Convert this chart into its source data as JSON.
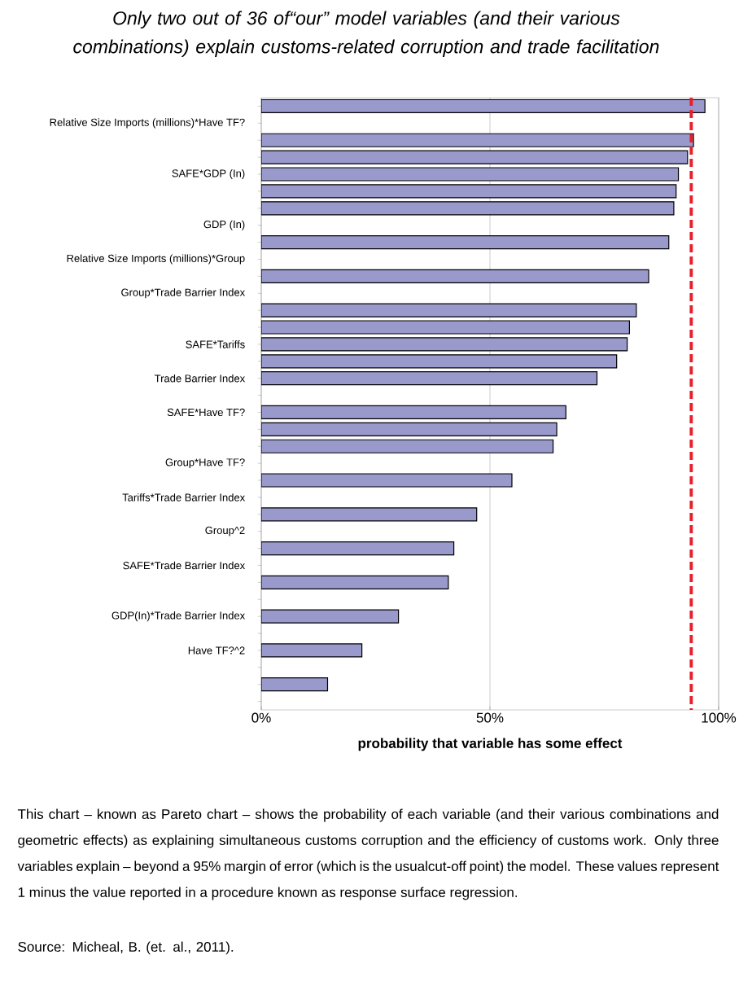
{
  "chart_data": {
    "type": "bar",
    "orientation": "horizontal",
    "title": "Only two out of 36 of“our” model variables (and their various combinations) explain customs-related corruption and trade facilitation",
    "xlabel": "probability that variable has some effect",
    "categories": [
      null,
      "Relative Size Imports (millions)*Have TF?",
      null,
      null,
      "SAFE*GDP (In)",
      null,
      null,
      "GDP (In)",
      null,
      "Relative Size Imports (millions)*Group",
      null,
      "Group*Trade Barrier Index",
      null,
      null,
      "SAFE*Tariffs",
      null,
      "Trade Barrier Index",
      null,
      "SAFE*Have TF?",
      null,
      null,
      "Group*Have TF?",
      null,
      "Tariffs*Trade Barrier Index",
      null,
      "Group^2",
      null,
      "SAFE*Trade Barrier Index",
      null,
      null,
      "GDP(In)*Trade Barrier Index",
      null,
      "Have TF?^2",
      null,
      null,
      null
    ],
    "values": [
      97.0,
      null,
      94.5,
      93.2,
      91.2,
      90.7,
      90.2,
      null,
      89.1,
      null,
      84.7,
      null,
      82.0,
      80.5,
      80.0,
      77.7,
      73.4,
      null,
      66.6,
      64.6,
      63.8,
      null,
      54.8,
      null,
      47.1,
      null,
      42.1,
      null,
      40.9,
      null,
      30.0,
      null,
      22.0,
      null,
      14.5,
      null
    ],
    "color": "#9999cc",
    "xlim": [
      0,
      100
    ],
    "xticks": [
      {
        "value": 0,
        "label": "0%"
      },
      {
        "value": 50,
        "label": "50%"
      },
      {
        "value": 100,
        "label": "100%"
      }
    ],
    "grid": "x",
    "ref_lines": [
      {
        "axis": "x",
        "value": 94,
        "color": "#e8202a",
        "line_style": "dashed"
      }
    ],
    "annotations": [
      "This chart – known as Pareto chart – shows the probability of each variable (and their various combinations and geometric effects) as explaining simultaneous customs corruption and the efficiency of customs work. Only three variables explain – beyond a 95% margin of error (which is the usualcut-off point) the model. These values represent 1 minus the value reported in a procedure known as response surface regression.",
      "Source: Micheal, B. (et. al., 2011)."
    ]
  }
}
